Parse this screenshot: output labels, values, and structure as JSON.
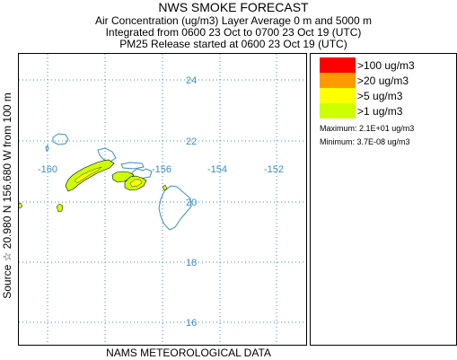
{
  "header": {
    "title": "NWS SMOKE FORECAST",
    "line1": "Air Concentration (ug/m3) Layer Average    0 m and  5000 m",
    "line2": "Integrated from 0600 23 Oct to 0700 23 Oct 19 (UTC)",
    "line3": "PM25 Release started at 0600 23 Oct 19 (UTC)"
  },
  "side_label": "Source ☆  20.980  N 156.680  W         from  100 m",
  "footer": "NAMS METEOROLOGICAL DATA",
  "map": {
    "lat_labels": [
      "24",
      "22",
      "20",
      "18",
      "16"
    ],
    "lon_labels": [
      "-160",
      "-156",
      "-154",
      "-152"
    ],
    "coast_color": "#3b8fbf",
    "grid_color": "#3b8fbf"
  },
  "legend": {
    "items": [
      {
        "label": ">100 ug/m3",
        "color": "#ff0000"
      },
      {
        "label": ">20 ug/m3",
        "color": "#ff9900"
      },
      {
        "label": ">5 ug/m3",
        "color": "#ffff00"
      },
      {
        "label": ">1 ug/m3",
        "color": "#ccff00"
      }
    ],
    "maximum": "Maximum: 2.1E+01 ug/m3",
    "minimum": "Minimum: 3.7E-08 ug/m3"
  }
}
